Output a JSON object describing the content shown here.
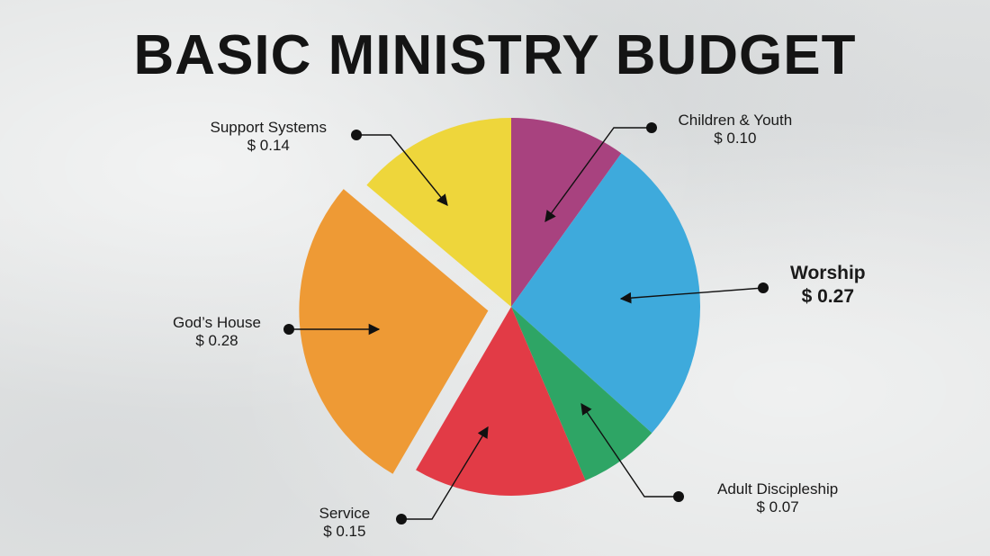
{
  "title": "BASIC MINISTRY BUDGET",
  "chart_data": {
    "type": "pie",
    "title": "BASIC MINISTRY BUDGET",
    "slices": [
      {
        "name": "Children & Youth",
        "value": 0.1,
        "label": "Children & Youth",
        "value_label": "$ 0.10",
        "color": "#a8427f"
      },
      {
        "name": "Worship",
        "value": 0.27,
        "label": "Worship",
        "value_label": "$ 0.27",
        "color": "#3eaadc",
        "emphasis": true
      },
      {
        "name": "Adult Discipleship",
        "value": 0.07,
        "label": "Adult Discipleship",
        "value_label": "$ 0.07",
        "color": "#2ea565"
      },
      {
        "name": "Service",
        "value": 0.15,
        "label": "Service",
        "value_label": "$ 0.15",
        "color": "#e23b46"
      },
      {
        "name": "God's House",
        "value": 0.28,
        "label": "God’s House",
        "value_label": "$ 0.28",
        "color": "#ee9a35",
        "exploded": true
      },
      {
        "name": "Support Systems",
        "value": 0.14,
        "label": "Support Systems",
        "value_label": "$ 0.14",
        "color": "#eed63b"
      }
    ]
  }
}
